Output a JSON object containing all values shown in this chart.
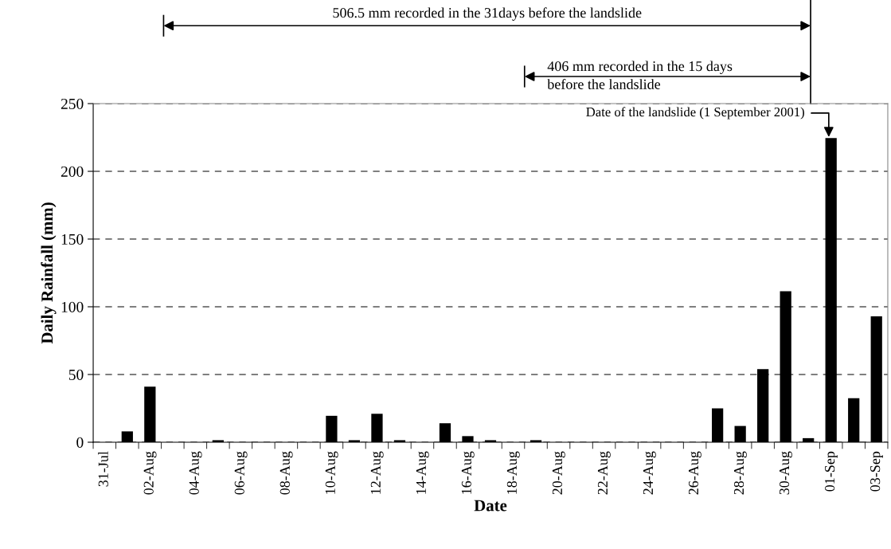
{
  "chart_data": {
    "type": "bar",
    "xlabel": "Date",
    "ylabel": "Daily Rainfall (mm)",
    "categories": [
      "31-Jul",
      null,
      "02-Aug",
      null,
      "04-Aug",
      null,
      "06-Aug",
      null,
      "08-Aug",
      null,
      "10-Aug",
      null,
      "12-Aug",
      null,
      "14-Aug",
      null,
      "16-Aug",
      null,
      "18-Aug",
      null,
      "20-Aug",
      null,
      "22-Aug",
      null,
      "24-Aug",
      null,
      "26-Aug",
      null,
      "28-Aug",
      null,
      "30-Aug",
      null,
      "01-Sep",
      null,
      "03-Sep"
    ],
    "values": [
      0,
      8,
      41,
      0,
      0,
      1.5,
      0,
      0,
      0,
      0,
      19.5,
      1.5,
      21,
      1.5,
      0,
      14,
      4.5,
      1.5,
      0,
      1.5,
      0,
      0,
      0,
      0,
      0,
      0,
      0,
      25,
      12,
      54,
      111.5,
      3,
      224.5,
      32.5,
      93
    ],
    "color": "#000000",
    "ylim": [
      0,
      250
    ],
    "yticks": [
      0,
      50,
      100,
      150,
      200,
      250
    ],
    "grid": "y",
    "annotations": [
      "506.5 mm recorded in the 31days before the landslide",
      "406 mm recorded in the 15 days\nbefore the landslide",
      {
        "text": "Date of the landslide (1 September 2001)",
        "x": "01-Sep",
        "y": 224.5
      }
    ]
  }
}
